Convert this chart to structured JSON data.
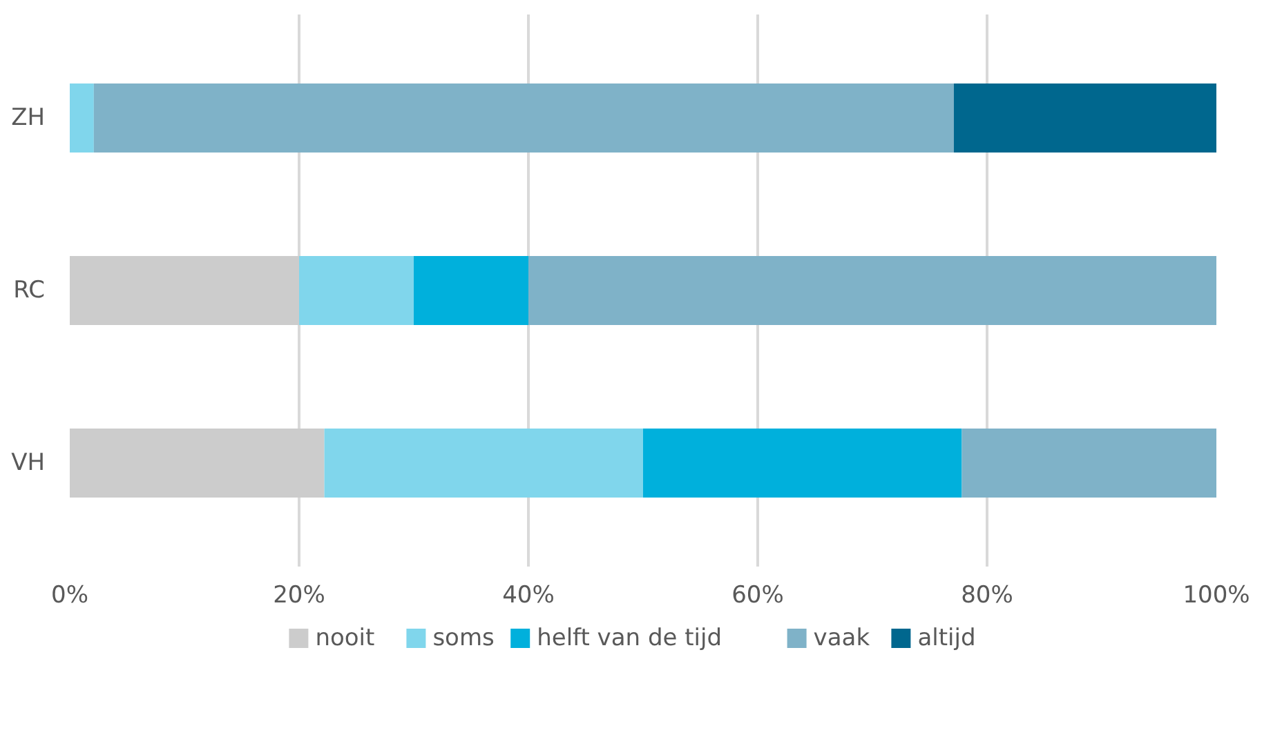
{
  "chart_data": {
    "type": "bar",
    "orientation": "horizontal",
    "stacked": true,
    "categories": [
      "ZH",
      "RC",
      "VH"
    ],
    "series": [
      {
        "name": "nooit",
        "color": "#cccccc",
        "values": [
          0,
          20,
          22.2
        ]
      },
      {
        "name": "soms",
        "color": "#80d6ec",
        "values": [
          2.1,
          10,
          27.8
        ]
      },
      {
        "name": "helft van de tijd",
        "color": "#00b0dc",
        "values": [
          0,
          10,
          27.8
        ]
      },
      {
        "name": "vaak",
        "color": "#7fb2c8",
        "values": [
          75,
          60,
          22.2
        ]
      },
      {
        "name": "altijd",
        "color": "#00678e",
        "values": [
          22.9,
          0,
          0
        ]
      }
    ],
    "xlim": [
      0,
      100
    ],
    "xticks": [
      {
        "value": 0,
        "label": "0%"
      },
      {
        "value": 20,
        "label": "20%"
      },
      {
        "value": 40,
        "label": "40%"
      },
      {
        "value": 60,
        "label": "60%"
      },
      {
        "value": 80,
        "label": "80%"
      },
      {
        "value": 100,
        "label": "100%"
      }
    ],
    "grid": "x",
    "legend": "bottom"
  }
}
